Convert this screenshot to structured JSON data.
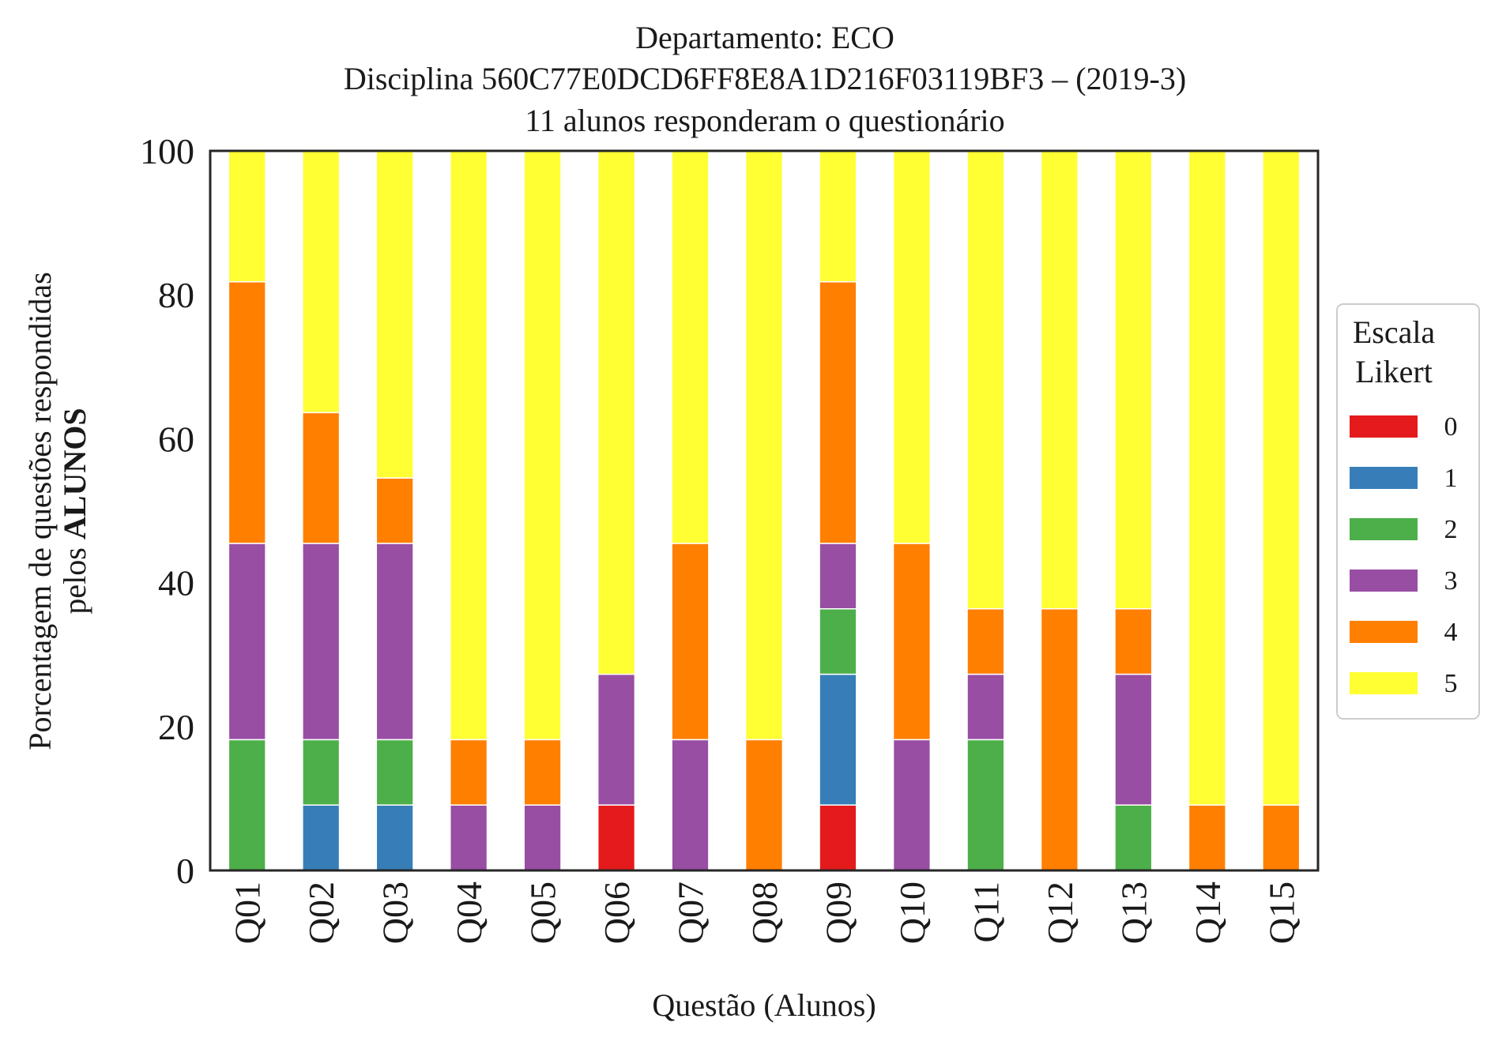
{
  "chart_data": {
    "type": "bar",
    "stacked": true,
    "title_lines": [
      "Departamento: ECO",
      "Disciplina 560C77E0DCD6FF8E8A1D216F03119BF3 – (2019-3)",
      "11 alunos responderam o questionário"
    ],
    "xlabel": "Questão (Alunos)",
    "ylabel_line1": "Porcentagem de questões respondidas",
    "ylabel_line2_prefix": "pelos ",
    "ylabel_line2_bold": "ALUNOS",
    "ylim": [
      0,
      100
    ],
    "yticks": [
      "0",
      "20",
      "40",
      "60",
      "80",
      "100"
    ],
    "grid": false,
    "legend_title_lines": [
      "Escala",
      "Likert"
    ],
    "legend_placement": "right",
    "categories": [
      "Q01",
      "Q02",
      "Q03",
      "Q04",
      "Q05",
      "Q06",
      "Q07",
      "Q08",
      "Q09",
      "Q10",
      "Q11",
      "Q12",
      "Q13",
      "Q14",
      "Q15"
    ],
    "series": [
      {
        "name": "0",
        "color": "#e41a1c",
        "values": [
          0,
          0,
          0,
          0,
          0,
          9.09,
          0,
          0,
          9.09,
          0,
          0,
          0,
          0,
          0,
          0
        ]
      },
      {
        "name": "1",
        "color": "#377eb8",
        "values": [
          0,
          9.09,
          9.09,
          0,
          0,
          0,
          0,
          0,
          18.18,
          0,
          0,
          0,
          0,
          0,
          0
        ]
      },
      {
        "name": "2",
        "color": "#4daf4a",
        "values": [
          18.18,
          9.09,
          9.09,
          0,
          0,
          0,
          0,
          0,
          9.09,
          0,
          18.18,
          0,
          9.09,
          0,
          0
        ]
      },
      {
        "name": "3",
        "color": "#984ea3",
        "values": [
          27.27,
          27.27,
          27.27,
          9.09,
          9.09,
          18.18,
          18.18,
          0,
          9.09,
          18.18,
          9.09,
          0,
          18.18,
          0,
          0
        ]
      },
      {
        "name": "4",
        "color": "#ff7f00",
        "values": [
          36.36,
          18.18,
          9.09,
          9.09,
          9.09,
          0,
          27.27,
          18.18,
          36.36,
          27.27,
          9.09,
          36.36,
          9.09,
          9.09,
          9.09
        ]
      },
      {
        "name": "5",
        "color": "#ffff33",
        "values": [
          18.18,
          36.36,
          45.45,
          81.82,
          81.82,
          72.73,
          54.55,
          81.82,
          18.18,
          54.55,
          63.64,
          63.64,
          63.64,
          90.91,
          90.91
        ]
      }
    ]
  }
}
